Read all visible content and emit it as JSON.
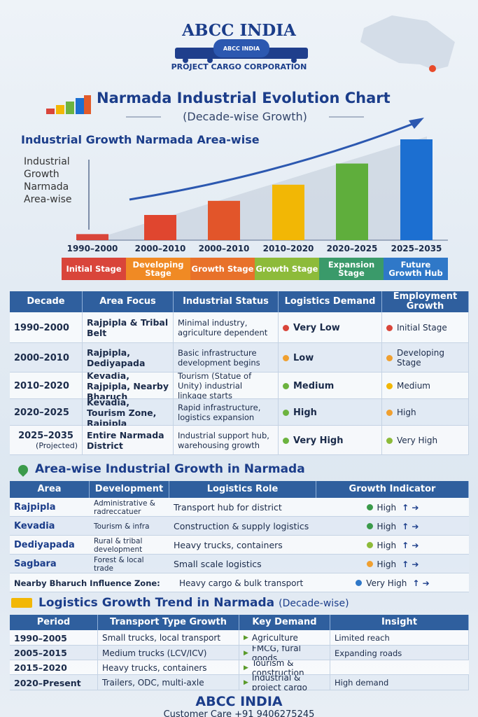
{
  "header": {
    "brand": "ABCC INDIA",
    "logo_text": "ABCC INDIA",
    "tagline": "PROJECT CARGO CORPORATION"
  },
  "chart_data": {
    "type": "bar",
    "title": "Narmada Industrial Evolution Chart",
    "subtitle": "(Decade-wise Growth)",
    "heading": "Industrial Growth Narmada Area-wise",
    "y_label": "Industrial Growth Narmada Area-wise",
    "categories": [
      "1990–2000",
      "2000–2010",
      "2000–2010",
      "2010–2020",
      "2020–2025",
      "2025–2035"
    ],
    "values": [
      6,
      25,
      39,
      55,
      76,
      100
    ],
    "colors": [
      "#d9453a",
      "#e0462f",
      "#e2552a",
      "#f2b705",
      "#5fae3c",
      "#1c6fd1"
    ],
    "stages": [
      "Initial Stage",
      "Developing Stage",
      "Growth Stage",
      "Growth Stage",
      "Expansion Stage",
      "Future Growth Hub"
    ],
    "stage_colors": [
      "#d9453a",
      "#f08a24",
      "#e8712a",
      "#8dbb3a",
      "#3a9a6a",
      "#2f78c8"
    ],
    "ylim": [
      0,
      100
    ]
  },
  "table1": {
    "headers": [
      "Decade",
      "Area Focus",
      "Industrial Status",
      "Logistics Demand",
      "Employment Growth"
    ],
    "rows": [
      {
        "cells": [
          "1990–2000",
          "Rajpipla & Tribal Belt",
          "Minimal industry, agriculture dependent",
          "Very Low",
          "Initial Stage"
        ],
        "dot_colors": [
          null,
          null,
          null,
          "#d9453a",
          "#d9453a"
        ]
      },
      {
        "cells": [
          "2000–2010",
          "Rajpipla, Dediyapada",
          "Basic infrastructure development begins",
          "Low",
          "Developing Stage"
        ],
        "dot_colors": [
          null,
          null,
          null,
          "#f0a030",
          "#f0a030"
        ]
      },
      {
        "cells": [
          "2010–2020",
          "Kevadia, Rajpipla, Nearby Bharuch",
          "Tourism (Statue of Unity) industrial linkage starts",
          "Medium",
          "Medium"
        ],
        "dot_colors": [
          null,
          null,
          null,
          "#6cb33f",
          "#f2b705"
        ]
      },
      {
        "cells": [
          "2020–2025",
          "Kevadia, Tourism Zone, Rajpipla",
          "Rapid infrastructure, logistics expansion",
          "High",
          "High"
        ],
        "dot_colors": [
          null,
          null,
          null,
          "#6cb33f",
          "#f0a030"
        ]
      },
      {
        "cells": [
          "2025–2035",
          "Entire Narmada District",
          "Industrial support hub, warehousing growth",
          "Very High",
          "Very High"
        ],
        "note": "(Projected)",
        "dot_colors": [
          null,
          null,
          null,
          "#6cb33f",
          "#8dbb3a"
        ]
      }
    ]
  },
  "section2": {
    "title": "Area-wise Industrial Growth in Narmada"
  },
  "table2": {
    "headers": [
      "Area",
      "Development",
      "Logistics Role",
      "Growth Indicator"
    ],
    "rows": [
      {
        "cells": [
          "Rajpipla",
          "Administrative & radreccatuer",
          "Transport hub for district",
          "High"
        ],
        "dot_color": "#3a9a4a"
      },
      {
        "cells": [
          "Kevadia",
          "Tourism & infra",
          "Construction & supply logistics",
          "High"
        ],
        "dot_color": "#3a9a4a"
      },
      {
        "cells": [
          "Dediyapada",
          "Rural & tribal development",
          "Heavy trucks, containers",
          "High"
        ],
        "dot_color": "#8dbb3a"
      },
      {
        "cells": [
          "Sagbara",
          "Forest & local trade",
          "Small scale logistics",
          "High"
        ],
        "dot_color": "#f0a030"
      },
      {
        "cells": [
          "Nearby Bharuch Influence Zone:",
          "Heavy cargo & bulk transport",
          "Very High"
        ],
        "dot_color": "#2f78c8"
      }
    ]
  },
  "section3": {
    "title": "Logistics Growth Trend in Narmada",
    "note": "(Decade-wise)"
  },
  "table3": {
    "headers": [
      "Period",
      "Transport Type Growth",
      "Key Demand",
      "Insight"
    ],
    "rows": [
      {
        "cells": [
          "1990–2005",
          "Small trucks, local transport",
          "Agriculture",
          "Limited reach"
        ]
      },
      {
        "cells": [
          "2005–2015",
          "Medium trucks (LCV/ICV)",
          "FMCG, fural goods",
          "Expanding roads"
        ]
      },
      {
        "cells": [
          "2015–2020",
          "Heavy trucks, containers",
          "Tourism & construction"
        ]
      },
      {
        "cells": [
          "2020–Present",
          "Trailers, ODC, multi-axle",
          "Industrial & project cargo",
          "High demand"
        ]
      }
    ]
  },
  "footer": {
    "brand": "ABCC INDIA",
    "contact": "Customer Care +91 9406275245"
  }
}
